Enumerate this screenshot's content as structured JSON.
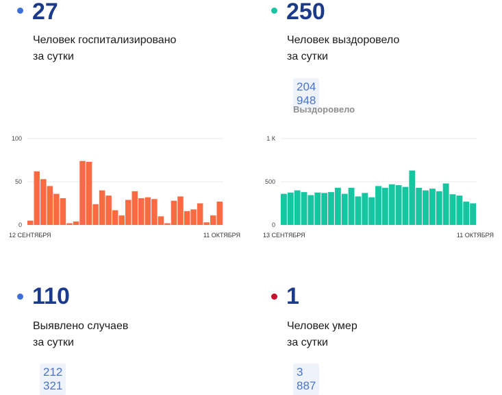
{
  "stats": [
    {
      "value": "27",
      "desc1": "Человек госпитализировано",
      "desc2": "за сутки",
      "dot_color": "#3c6fd8"
    },
    {
      "value": "250",
      "desc1": "Человек выздоровело",
      "desc2": "за сутки",
      "dot_color": "#1bc2a3",
      "total": "204 948",
      "total_label": "Выздоровело"
    },
    {
      "value": "110",
      "desc1": "Выявлено случаев",
      "desc2": "за сутки",
      "dot_color": "#3c6fd8",
      "total": "212 321"
    },
    {
      "value": "1",
      "desc1": "Человек умер",
      "desc2": "за сутки",
      "dot_color": "#c8102e",
      "total": "3 887"
    }
  ],
  "chart_data": [
    {
      "type": "bar",
      "color": "#fa6b43",
      "yticks": [
        "100",
        "50",
        "0"
      ],
      "ylim": [
        0,
        100
      ],
      "x_start_label": "12 СЕНТЯБРЯ",
      "x_end_label": "11 ОКТЯБРЯ",
      "values": [
        5,
        62,
        53,
        45,
        36,
        31,
        2,
        4,
        74,
        73,
        24,
        40,
        34,
        17,
        11,
        29,
        39,
        31,
        32,
        30,
        10,
        2,
        28,
        33,
        16,
        18,
        25,
        3,
        11,
        27
      ]
    },
    {
      "type": "bar",
      "color": "#16c6a1",
      "yticks": [
        "1 К",
        "500",
        "0"
      ],
      "ylim": [
        0,
        1000
      ],
      "x_start_label": "13 СЕНТЯБРЯ",
      "x_end_label": "11 ОКТЯБРЯ",
      "values": [
        360,
        375,
        400,
        380,
        345,
        375,
        370,
        380,
        430,
        360,
        430,
        330,
        370,
        320,
        450,
        430,
        470,
        460,
        440,
        630,
        430,
        400,
        420,
        390,
        480,
        355,
        340,
        270,
        250
      ]
    }
  ]
}
